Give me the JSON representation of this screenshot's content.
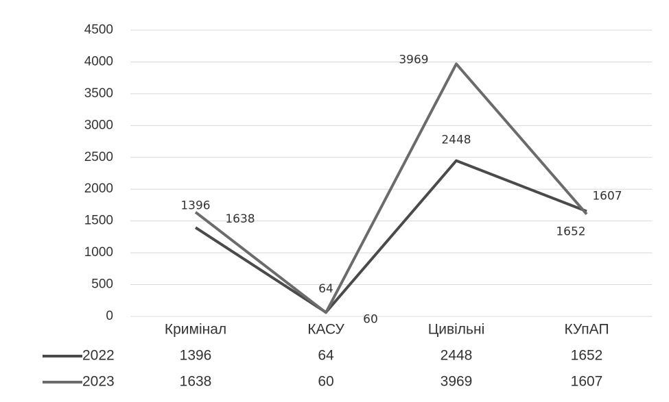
{
  "chart_data": {
    "type": "line",
    "categories": [
      "Кримінал",
      "КАСУ",
      "Цивільні",
      "КУпАП"
    ],
    "series": [
      {
        "name": "2022",
        "color": "#4a4a4a",
        "values": [
          1396,
          64,
          2448,
          1652
        ]
      },
      {
        "name": "2023",
        "color": "#6b6b6b",
        "values": [
          1638,
          60,
          3969,
          1607
        ]
      }
    ],
    "ylim": [
      0,
      4500
    ],
    "yticks": [
      0,
      500,
      1000,
      1500,
      2000,
      2500,
      3000,
      3500,
      4000,
      4500
    ],
    "grid": true,
    "data_table": true
  }
}
